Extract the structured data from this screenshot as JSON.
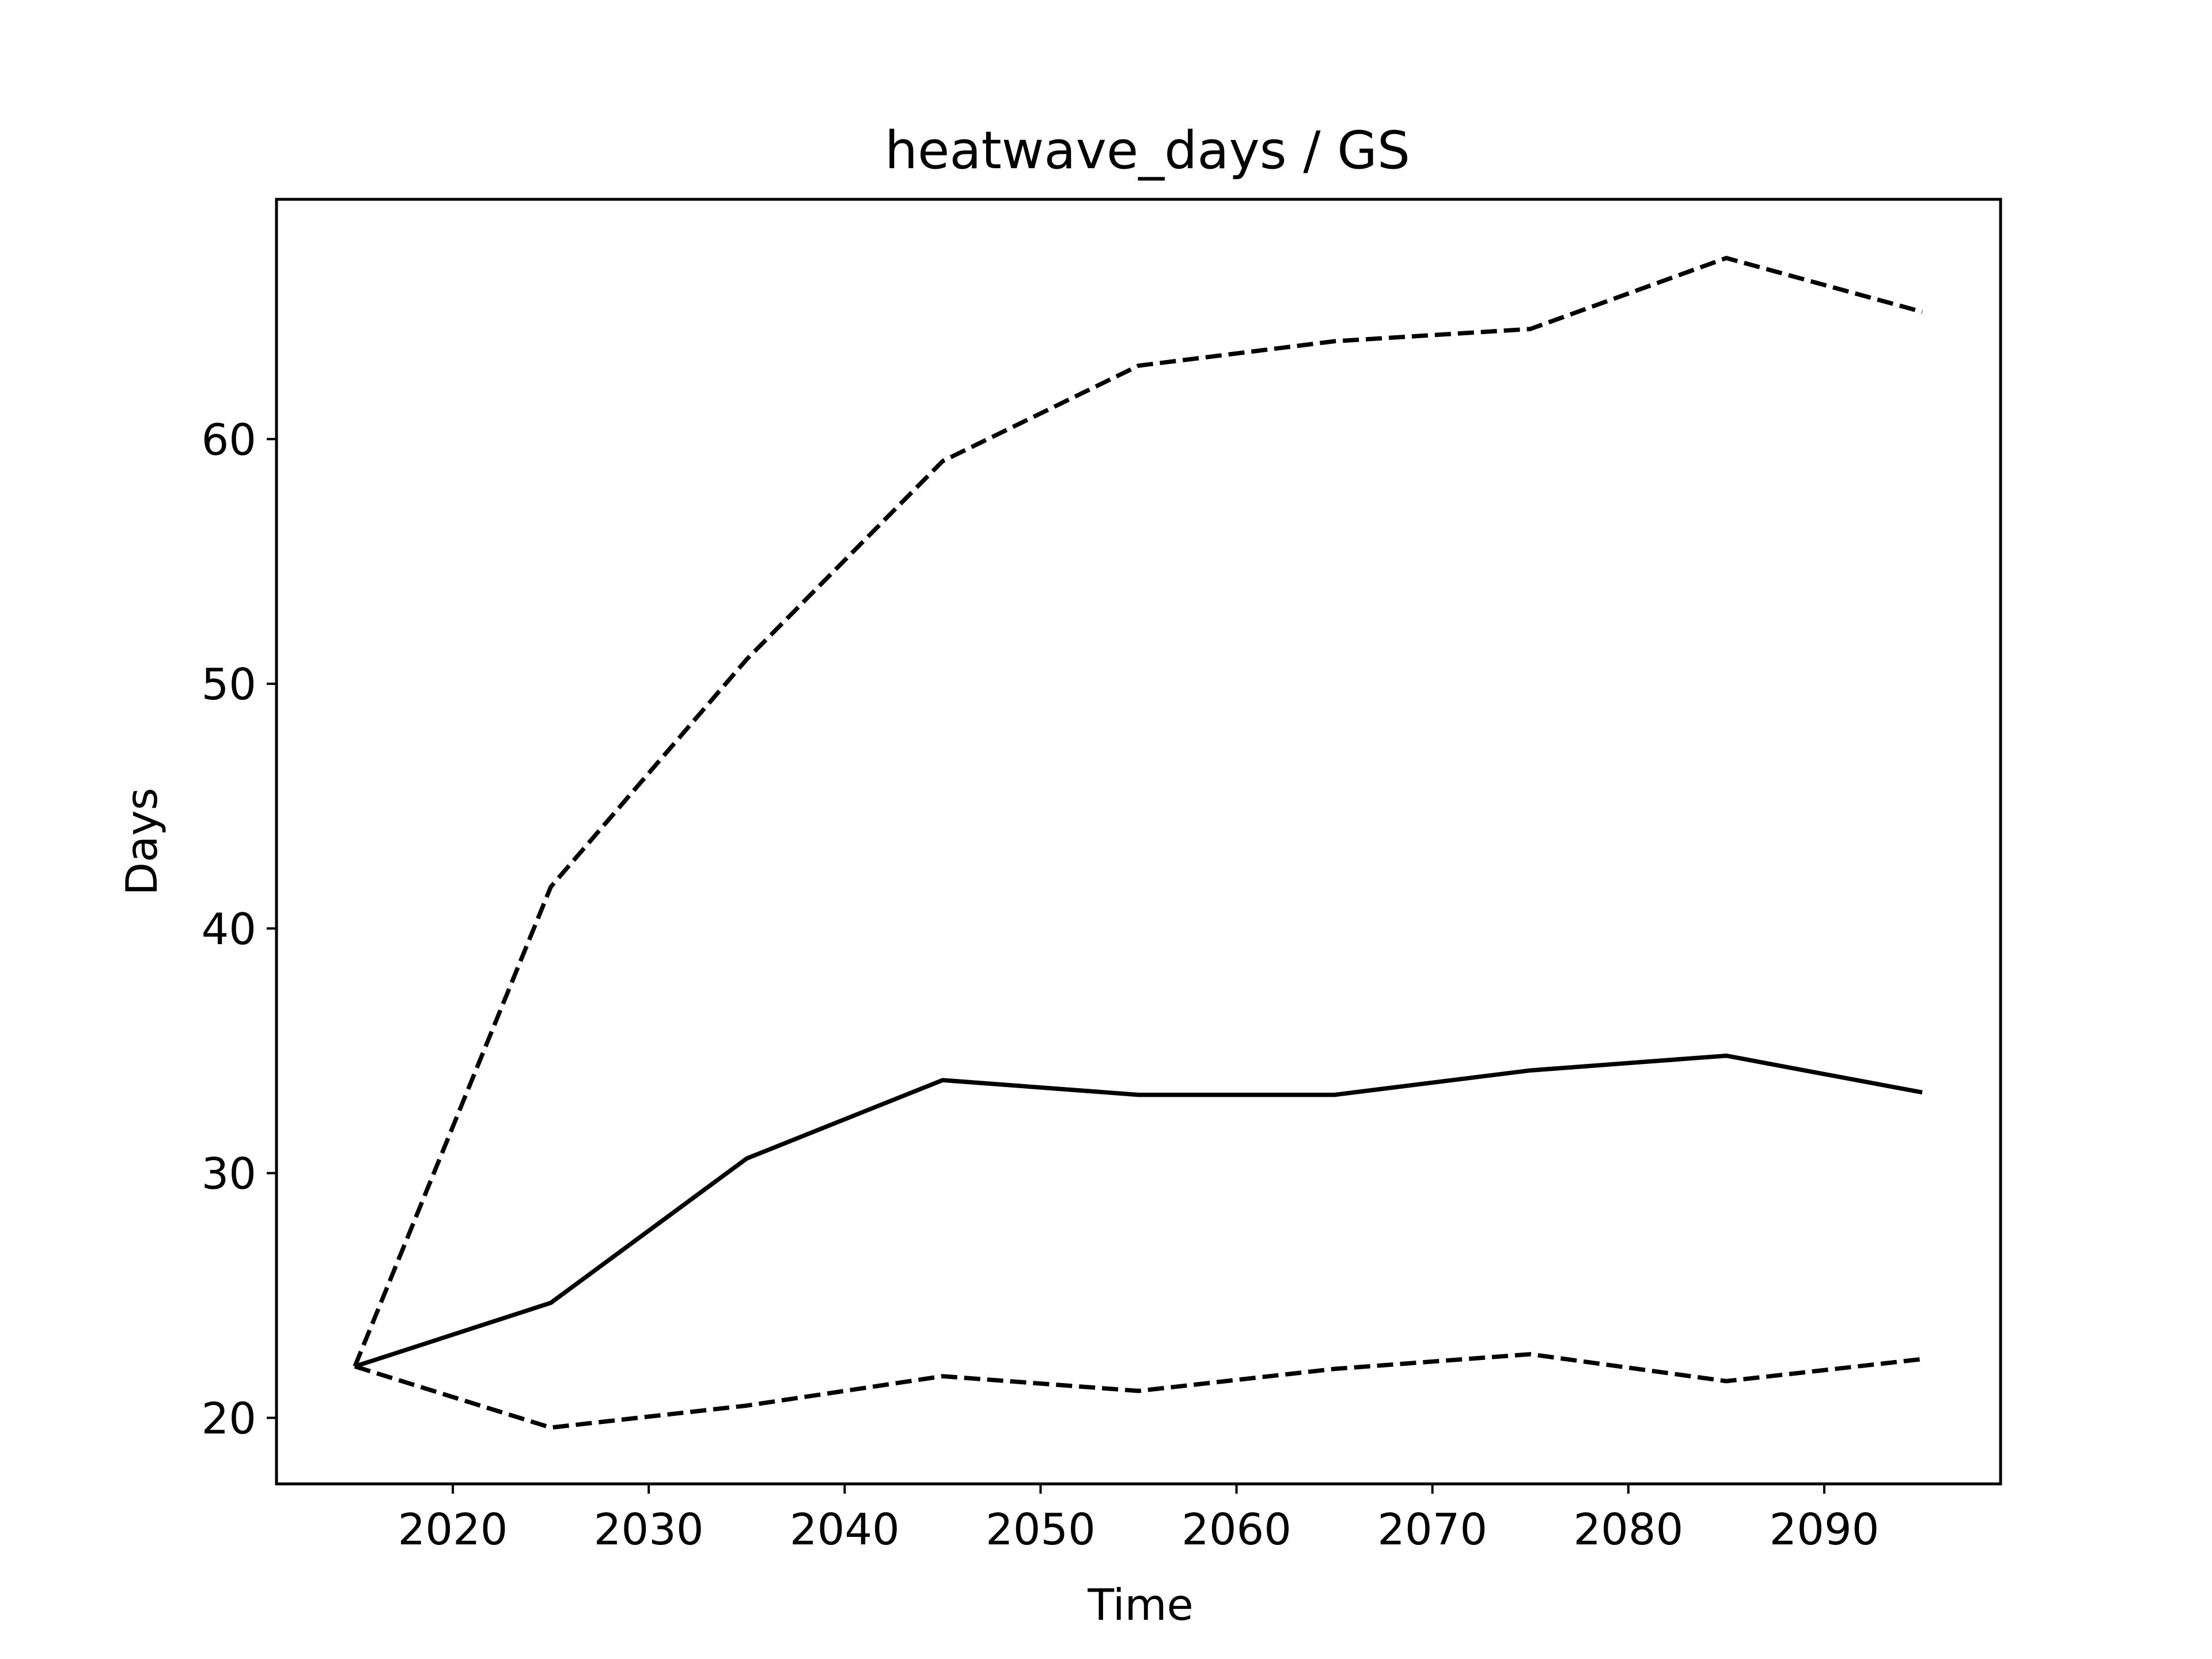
{
  "chart_data": {
    "type": "line",
    "title": "heatwave_days / GS",
    "xlabel": "Time",
    "ylabel": "Days",
    "xlim": [
      2011,
      2099
    ],
    "ylim": [
      17.3,
      69.8
    ],
    "xticks": [
      2020,
      2030,
      2040,
      2050,
      2060,
      2070,
      2080,
      2090
    ],
    "yticks": [
      20,
      30,
      40,
      50,
      60
    ],
    "x": [
      2015,
      2025,
      2035,
      2045,
      2055,
      2065,
      2075,
      2085,
      2095
    ],
    "series": [
      {
        "style": "dashed",
        "color": "#000000",
        "values": [
          22.1,
          41.7,
          51.0,
          59.1,
          63.0,
          64.0,
          64.5,
          67.4,
          65.2
        ]
      },
      {
        "style": "solid",
        "color": "#000000",
        "values": [
          22.1,
          24.7,
          30.6,
          33.8,
          33.2,
          33.2,
          34.2,
          34.8,
          33.3
        ]
      },
      {
        "style": "dashed",
        "color": "#000000",
        "values": [
          22.1,
          19.6,
          20.5,
          21.7,
          21.1,
          22.0,
          22.6,
          21.5,
          22.4
        ]
      }
    ],
    "grid": false,
    "legend": "none"
  }
}
